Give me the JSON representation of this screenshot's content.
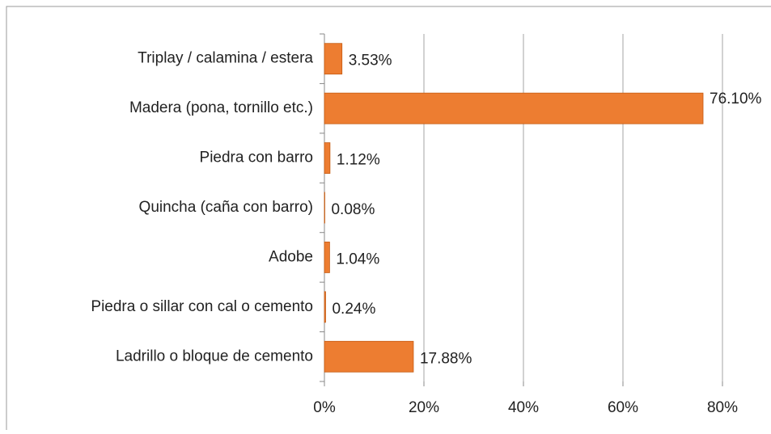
{
  "chart_data": {
    "type": "bar",
    "orientation": "horizontal",
    "categories": [
      "Triplay / calamina / estera",
      "Madera (pona, tornillo etc.)",
      "Piedra con barro",
      "Quincha (caña con barro)",
      "Adobe",
      "Piedra o sillar con cal o cemento",
      "Ladrillo o bloque de cemento"
    ],
    "values": [
      3.53,
      76.1,
      1.12,
      0.08,
      1.04,
      0.24,
      17.88
    ],
    "value_labels": [
      "3.53%",
      "76.10%",
      "1.12%",
      "0.08%",
      "1.04%",
      "0.24%",
      "17.88%"
    ],
    "color": "#ed7d31",
    "xlim": [
      0,
      80
    ],
    "xticks": [
      {
        "value": 0,
        "label": "0%"
      },
      {
        "value": 20,
        "label": "20%"
      },
      {
        "value": 40,
        "label": "40%"
      },
      {
        "value": 60,
        "label": "60%"
      },
      {
        "value": 80,
        "label": "80%"
      }
    ],
    "grid": true
  }
}
